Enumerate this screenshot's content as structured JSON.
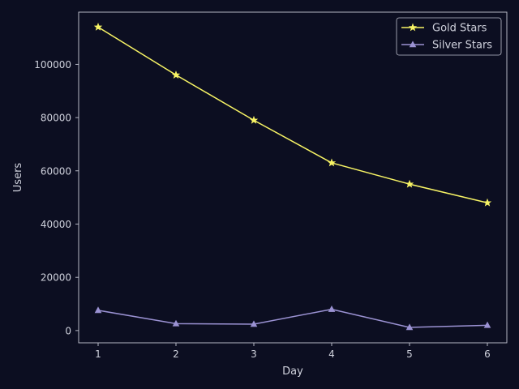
{
  "colors": {
    "background": "#0c0e21",
    "axes": "#c8cad6",
    "text": "#cfd1dc",
    "gold": "#f8f465",
    "silver": "#9b92d3"
  },
  "chart_data": {
    "type": "line",
    "title": "",
    "xlabel": "Day",
    "ylabel": "Users",
    "x": [
      1,
      2,
      3,
      4,
      5,
      6
    ],
    "xticks": [
      "1",
      "2",
      "3",
      "4",
      "5",
      "6"
    ],
    "yticks": [
      "0",
      "20000",
      "40000",
      "60000",
      "80000",
      "100000"
    ],
    "xlim": [
      0.75,
      6.25
    ],
    "ylim": [
      -4600,
      119600
    ],
    "grid": false,
    "legend_position": "top-right",
    "series": [
      {
        "name": "Gold Stars",
        "values": [
          114000,
          96000,
          79000,
          63000,
          55000,
          48000
        ],
        "color": "#f8f465",
        "marker": "star"
      },
      {
        "name": "Silver Stars",
        "values": [
          7600,
          2600,
          2400,
          8000,
          1200,
          2000
        ],
        "color": "#9b92d3",
        "marker": "triangle"
      }
    ]
  }
}
